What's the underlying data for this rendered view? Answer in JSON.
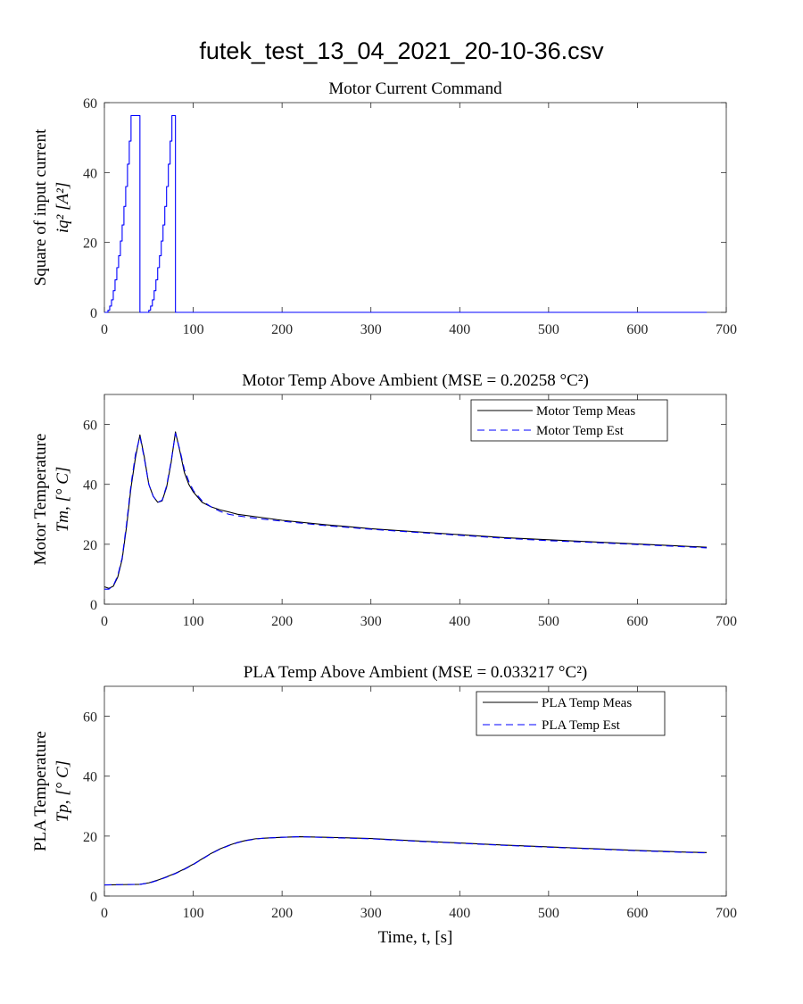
{
  "suptitle": "futek_test_13_04_2021_20-10-36.csv",
  "colors": {
    "measured": "#000000",
    "estimated": "#0000ff",
    "axes": "#262626"
  },
  "chart_data": [
    {
      "type": "line",
      "title": "Motor Current Command",
      "ylabel_line1": "Square of input current",
      "ylabel_line2": "iq² [A²]",
      "xlabel": "",
      "xlim": [
        0,
        700
      ],
      "ylim": [
        0,
        60
      ],
      "xticks": [
        0,
        100,
        200,
        300,
        400,
        500,
        600,
        700
      ],
      "yticks": [
        0,
        20,
        40,
        60
      ],
      "grid": false,
      "legend": null,
      "series": [
        {
          "style": "solid",
          "color": "#0000ff",
          "x": [
            0,
            4,
            4,
            6,
            6,
            8,
            8,
            10,
            10,
            12,
            12,
            14,
            14,
            16,
            16,
            18,
            18,
            20,
            20,
            22,
            22,
            24,
            24,
            26,
            26,
            28,
            28,
            30,
            30,
            40,
            40,
            50,
            50,
            52,
            52,
            54,
            54,
            56,
            56,
            58,
            58,
            60,
            60,
            62,
            62,
            64,
            64,
            66,
            66,
            68,
            68,
            70,
            70,
            72,
            72,
            74,
            74,
            76,
            76,
            78,
            78,
            80,
            80,
            678
          ],
          "y": [
            0,
            0,
            0.6,
            0.6,
            1.8,
            1.8,
            3.6,
            3.6,
            6.2,
            6.2,
            9.3,
            9.3,
            12.8,
            12.8,
            16.2,
            16.2,
            20.4,
            20.4,
            25,
            25,
            30.3,
            30.3,
            36,
            36,
            42.4,
            42.4,
            49,
            49,
            56.3,
            56.3,
            0,
            0,
            0.6,
            0.6,
            1.8,
            1.8,
            3.6,
            3.6,
            6.2,
            6.2,
            9.3,
            9.3,
            12.8,
            12.8,
            16.2,
            16.2,
            20.4,
            20.4,
            25,
            25,
            30.3,
            30.3,
            36,
            36,
            42.4,
            42.4,
            49,
            49,
            56.3,
            56.3,
            56.3,
            56.3,
            0,
            0
          ]
        }
      ]
    },
    {
      "type": "line",
      "title": "Motor Temp Above Ambient (MSE = 0.20258 °C²)",
      "ylabel_line1": "Motor Temperature",
      "ylabel_line2": "Tm, [° C]",
      "xlabel": "",
      "xlim": [
        0,
        700
      ],
      "ylim": [
        0,
        70
      ],
      "xticks": [
        0,
        100,
        200,
        300,
        400,
        500,
        600,
        700
      ],
      "yticks": [
        0,
        20,
        40,
        60
      ],
      "grid": false,
      "legend": "top-right",
      "series": [
        {
          "name": "Motor Temp Meas",
          "style": "solid",
          "color": "#000000",
          "x": [
            0,
            5,
            10,
            15,
            20,
            25,
            30,
            35,
            40,
            45,
            50,
            55,
            60,
            65,
            70,
            75,
            80,
            85,
            90,
            95,
            100,
            110,
            120,
            130,
            140,
            150,
            175,
            200,
            250,
            300,
            350,
            400,
            450,
            500,
            550,
            600,
            650,
            678
          ],
          "y": [
            5.8,
            5.3,
            6.0,
            9.0,
            15.0,
            26.0,
            39.0,
            49.0,
            56.5,
            49.0,
            40.0,
            36.0,
            34.0,
            34.5,
            39.0,
            47.0,
            57.5,
            51.0,
            44.0,
            40.0,
            37.5,
            34.0,
            32.5,
            31.5,
            30.8,
            30.0,
            29.0,
            28.0,
            26.5,
            25.2,
            24.2,
            23.2,
            22.2,
            21.5,
            20.8,
            20.1,
            19.4,
            19.0
          ]
        },
        {
          "name": "Motor Temp Est",
          "style": "dashed",
          "color": "#0000ff",
          "x": [
            0,
            5,
            10,
            15,
            20,
            25,
            30,
            35,
            40,
            45,
            50,
            55,
            60,
            65,
            70,
            75,
            80,
            85,
            90,
            95,
            100,
            110,
            120,
            130,
            140,
            150,
            175,
            200,
            250,
            300,
            350,
            400,
            450,
            500,
            550,
            600,
            650,
            678
          ],
          "y": [
            5.0,
            5.0,
            6.2,
            9.5,
            15.5,
            27.0,
            40.0,
            50.0,
            56.0,
            48.5,
            40.0,
            36.0,
            34.0,
            34.7,
            39.5,
            47.5,
            57.0,
            51.5,
            45.0,
            41.0,
            38.0,
            34.5,
            32.5,
            31.0,
            30.0,
            29.5,
            28.5,
            27.7,
            26.2,
            25.0,
            24.0,
            23.0,
            22.0,
            21.2,
            20.6,
            19.9,
            19.2,
            18.8
          ]
        }
      ]
    },
    {
      "type": "line",
      "title": "PLA Temp Above Ambient (MSE = 0.033217 °C²)",
      "ylabel_line1": "PLA Temperature",
      "ylabel_line2": "Tp, [° C]",
      "xlabel": "Time, t, [s]",
      "xlim": [
        0,
        700
      ],
      "ylim": [
        0,
        70
      ],
      "xticks": [
        0,
        100,
        200,
        300,
        400,
        500,
        600,
        700
      ],
      "yticks": [
        0,
        20,
        40,
        60
      ],
      "grid": false,
      "legend": "top-right",
      "series": [
        {
          "name": "PLA Temp Meas",
          "style": "solid",
          "color": "#000000",
          "x": [
            0,
            20,
            40,
            50,
            60,
            70,
            80,
            90,
            100,
            110,
            120,
            130,
            140,
            150,
            160,
            170,
            180,
            200,
            220,
            250,
            300,
            350,
            400,
            450,
            500,
            550,
            600,
            650,
            678
          ],
          "y": [
            3.7,
            3.8,
            3.9,
            4.4,
            5.3,
            6.4,
            7.6,
            9.0,
            10.6,
            12.4,
            14.2,
            15.7,
            16.9,
            17.9,
            18.6,
            19.1,
            19.3,
            19.6,
            19.8,
            19.6,
            19.2,
            18.4,
            17.7,
            17.0,
            16.4,
            15.8,
            15.2,
            14.7,
            14.5
          ]
        },
        {
          "name": "PLA Temp Est",
          "style": "dashed",
          "color": "#0000ff",
          "x": [
            0,
            20,
            40,
            50,
            60,
            70,
            80,
            90,
            100,
            110,
            120,
            130,
            140,
            150,
            160,
            170,
            180,
            200,
            220,
            250,
            300,
            350,
            400,
            450,
            500,
            550,
            600,
            650,
            678
          ],
          "y": [
            3.7,
            3.8,
            3.9,
            4.3,
            5.2,
            6.3,
            7.5,
            8.9,
            10.5,
            12.3,
            14.1,
            15.6,
            16.8,
            17.8,
            18.5,
            19.0,
            19.3,
            19.6,
            19.8,
            19.5,
            19.1,
            18.3,
            17.6,
            16.9,
            16.3,
            15.7,
            15.1,
            14.6,
            14.4
          ]
        }
      ]
    }
  ]
}
